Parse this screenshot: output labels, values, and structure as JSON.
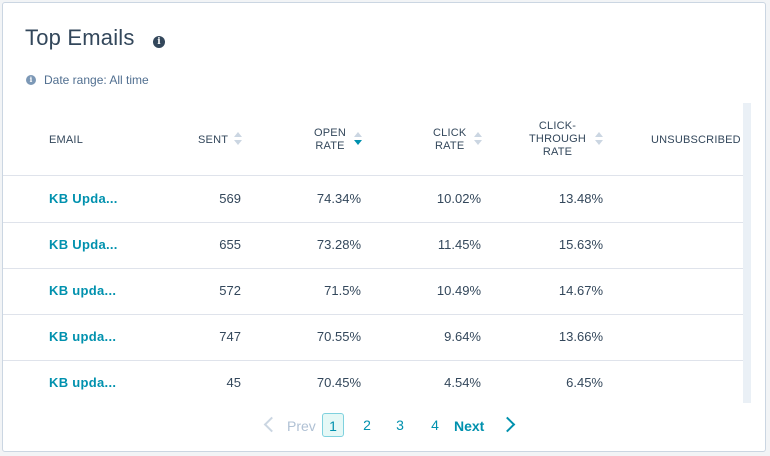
{
  "card": {
    "title": "Top Emails",
    "info_icon": "info-icon",
    "date_range": "Date range: All time"
  },
  "columns": [
    {
      "key": "email",
      "label": "EMAIL",
      "sortable": false
    },
    {
      "key": "sent",
      "label": "SENT",
      "sortable": true,
      "sort": "none"
    },
    {
      "key": "open_rate",
      "label": "OPEN\nRATE",
      "sortable": true,
      "sort": "desc"
    },
    {
      "key": "click_rate",
      "label": "CLICK\nRATE",
      "sortable": true,
      "sort": "none"
    },
    {
      "key": "ctr",
      "label": "CLICK-\nTHROUGH\nRATE",
      "sortable": true,
      "sort": "none"
    },
    {
      "key": "unsubscribed",
      "label": "UNSUBSCRIBED",
      "sortable": false
    }
  ],
  "rows": [
    {
      "email": "KB Upda...",
      "sent": "569",
      "open_rate": "74.34%",
      "click_rate": "10.02%",
      "ctr": "13.48%"
    },
    {
      "email": "KB Upda...",
      "sent": "655",
      "open_rate": "73.28%",
      "click_rate": "11.45%",
      "ctr": "15.63%"
    },
    {
      "email": "KB upda...",
      "sent": "572",
      "open_rate": "71.5%",
      "click_rate": "10.49%",
      "ctr": "14.67%"
    },
    {
      "email": "KB upda...",
      "sent": "747",
      "open_rate": "70.55%",
      "click_rate": "9.64%",
      "ctr": "13.66%"
    },
    {
      "email": "KB upda...",
      "sent": "45",
      "open_rate": "70.45%",
      "click_rate": "4.54%",
      "ctr": "6.45%"
    }
  ],
  "pagination": {
    "prev_label": "Prev",
    "next_label": "Next",
    "pages": [
      "1",
      "2",
      "3",
      "4"
    ],
    "current": "1"
  },
  "colors": {
    "accent": "#0091ae",
    "text": "#33475b",
    "muted": "#516f90",
    "border": "#dfe3eb"
  }
}
